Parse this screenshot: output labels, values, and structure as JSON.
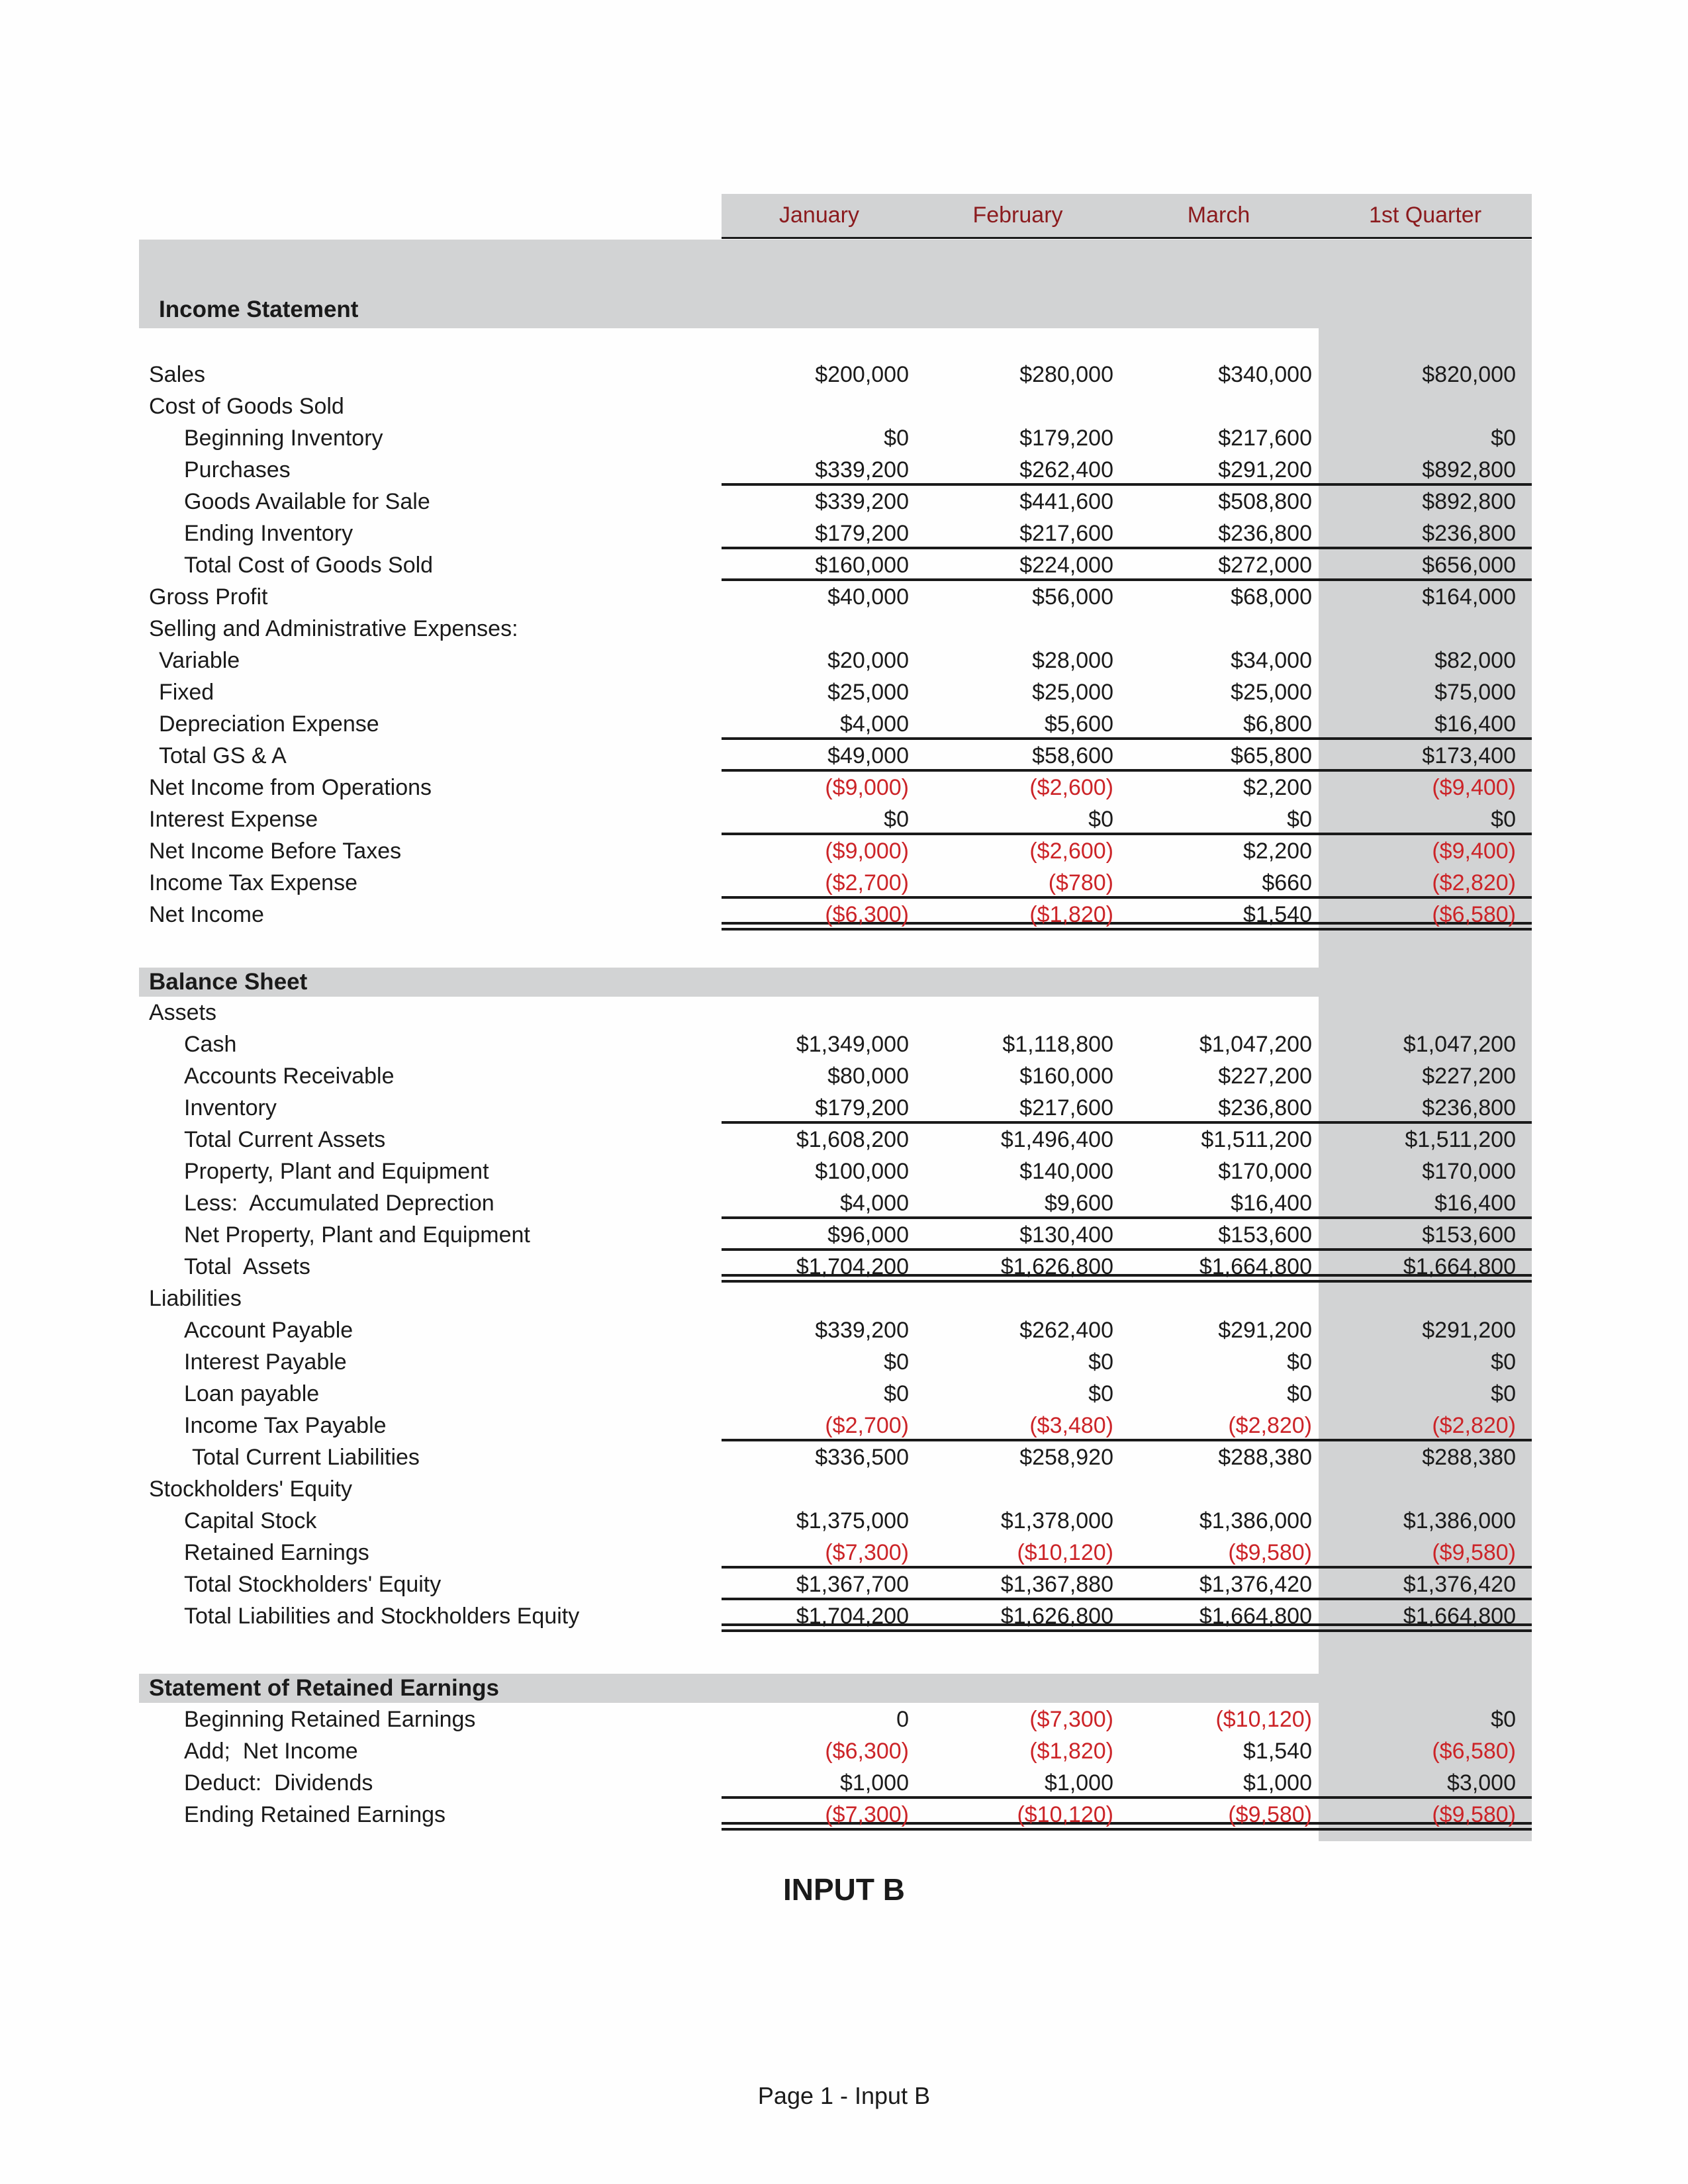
{
  "document": {
    "columns": [
      "January",
      "February",
      "March",
      "1st Quarter"
    ],
    "footer": {
      "title": "INPUT B",
      "page_label": "Page 1 - Input B"
    },
    "colors": {
      "month_header_text": "#8b1b1e",
      "negative_value_text": "#cc2428",
      "section_band_fill": "#d2d3d4",
      "quarter_column_fill": "#d2d3d4",
      "rule_line": "#1a1a1a",
      "body_text": "#1a1a1a"
    }
  },
  "sections": [
    {
      "id": "income",
      "title": "Income Statement",
      "rows": [
        {
          "label": "Sales",
          "indent": 0,
          "values": [
            "$200,000",
            "$280,000",
            "$340,000",
            "$820,000"
          ],
          "border": "none"
        },
        {
          "label": "Cost of Goods Sold",
          "indent": 0,
          "values": [
            "",
            "",
            "",
            ""
          ],
          "border": "none"
        },
        {
          "label": "Beginning Inventory",
          "indent": 2,
          "values": [
            "$0",
            "$179,200",
            "$217,600",
            "$0"
          ],
          "border": "none"
        },
        {
          "label": "Purchases",
          "indent": 2,
          "values": [
            "$339,200",
            "$262,400",
            "$291,200",
            "$892,800"
          ],
          "border": "single"
        },
        {
          "label": "Goods Available for Sale",
          "indent": 2,
          "values": [
            "$339,200",
            "$441,600",
            "$508,800",
            "$892,800"
          ],
          "border": "none"
        },
        {
          "label": "Ending Inventory",
          "indent": 2,
          "values": [
            "$179,200",
            "$217,600",
            "$236,800",
            "$236,800"
          ],
          "border": "single"
        },
        {
          "label": "Total Cost of Goods Sold",
          "indent": 2,
          "values": [
            "$160,000",
            "$224,000",
            "$272,000",
            "$656,000"
          ],
          "border": "single"
        },
        {
          "label": "Gross Profit",
          "indent": 0,
          "values": [
            "$40,000",
            "$56,000",
            "$68,000",
            "$164,000"
          ],
          "border": "none"
        },
        {
          "label": "Selling and Administrative Expenses:",
          "indent": 0,
          "values": [
            "",
            "",
            "",
            ""
          ],
          "border": "none"
        },
        {
          "label": "Variable",
          "indent": 1,
          "values": [
            "$20,000",
            "$28,000",
            "$34,000",
            "$82,000"
          ],
          "border": "none"
        },
        {
          "label": "Fixed",
          "indent": 1,
          "values": [
            "$25,000",
            "$25,000",
            "$25,000",
            "$75,000"
          ],
          "border": "none"
        },
        {
          "label": "Depreciation Expense",
          "indent": 1,
          "values": [
            "$4,000",
            "$5,600",
            "$6,800",
            "$16,400"
          ],
          "border": "single"
        },
        {
          "label": "Total GS & A",
          "indent": 1,
          "values": [
            "$49,000",
            "$58,600",
            "$65,800",
            "$173,400"
          ],
          "border": "single"
        },
        {
          "label": "Net Income from Operations",
          "indent": 0,
          "values": [
            "($9,000)",
            "($2,600)",
            "$2,200",
            "($9,400)"
          ],
          "border": "none"
        },
        {
          "label": "Interest Expense",
          "indent": 0,
          "values": [
            "$0",
            "$0",
            "$0",
            "$0"
          ],
          "border": "single"
        },
        {
          "label": "Net Income Before Taxes",
          "indent": 0,
          "values": [
            "($9,000)",
            "($2,600)",
            "$2,200",
            "($9,400)"
          ],
          "border": "none"
        },
        {
          "label": "Income Tax Expense",
          "indent": 0,
          "values": [
            "($2,700)",
            "($780)",
            "$660",
            "($2,820)"
          ],
          "border": "single"
        },
        {
          "label": "Net Income",
          "indent": 0,
          "values": [
            "($6,300)",
            "($1,820)",
            "$1,540",
            "($6,580)"
          ],
          "border": "double"
        }
      ]
    },
    {
      "id": "balance",
      "title": "Balance Sheet",
      "rows": [
        {
          "label": "Assets",
          "indent": 0,
          "values": [
            "",
            "",
            "",
            ""
          ],
          "border": "none"
        },
        {
          "label": "Cash",
          "indent": 2,
          "values": [
            "$1,349,000",
            "$1,118,800",
            "$1,047,200",
            "$1,047,200"
          ],
          "border": "none"
        },
        {
          "label": "Accounts Receivable",
          "indent": 2,
          "values": [
            "$80,000",
            "$160,000",
            "$227,200",
            "$227,200"
          ],
          "border": "none"
        },
        {
          "label": "Inventory",
          "indent": 2,
          "values": [
            "$179,200",
            "$217,600",
            "$236,800",
            "$236,800"
          ],
          "border": "single"
        },
        {
          "label": "Total Current Assets",
          "indent": 2,
          "values": [
            "$1,608,200",
            "$1,496,400",
            "$1,511,200",
            "$1,511,200"
          ],
          "border": "none"
        },
        {
          "label": "Property, Plant and Equipment",
          "indent": 2,
          "values": [
            "$100,000",
            "$140,000",
            "$170,000",
            "$170,000"
          ],
          "border": "none"
        },
        {
          "label": "Less:  Accumulated Deprection",
          "indent": 2,
          "values": [
            "$4,000",
            "$9,600",
            "$16,400",
            "$16,400"
          ],
          "border": "single"
        },
        {
          "label": "Net Property, Plant and Equipment",
          "indent": 2,
          "values": [
            "$96,000",
            "$130,400",
            "$153,600",
            "$153,600"
          ],
          "border": "single"
        },
        {
          "label": "Total  Assets",
          "indent": 2,
          "values": [
            "$1,704,200",
            "$1,626,800",
            "$1,664,800",
            "$1,664,800"
          ],
          "border": "double"
        },
        {
          "label": "Liabilities",
          "indent": 0,
          "values": [
            "",
            "",
            "",
            ""
          ],
          "border": "none"
        },
        {
          "label": "Account Payable",
          "indent": 2,
          "values": [
            "$339,200",
            "$262,400",
            "$291,200",
            "$291,200"
          ],
          "border": "none"
        },
        {
          "label": "Interest Payable",
          "indent": 2,
          "values": [
            "$0",
            "$0",
            "$0",
            "$0"
          ],
          "border": "none"
        },
        {
          "label": "Loan payable",
          "indent": 2,
          "values": [
            "$0",
            "$0",
            "$0",
            "$0"
          ],
          "border": "none"
        },
        {
          "label": "Income Tax Payable",
          "indent": 2,
          "values": [
            "($2,700)",
            "($3,480)",
            "($2,820)",
            "($2,820)"
          ],
          "border": "single"
        },
        {
          "label": "Total Current Liabilities",
          "indent": 3,
          "values": [
            "$336,500",
            "$258,920",
            "$288,380",
            "$288,380"
          ],
          "border": "none"
        },
        {
          "label": "Stockholders' Equity",
          "indent": 0,
          "values": [
            "",
            "",
            "",
            ""
          ],
          "border": "none"
        },
        {
          "label": "Capital Stock",
          "indent": 2,
          "values": [
            "$1,375,000",
            "$1,378,000",
            "$1,386,000",
            "$1,386,000"
          ],
          "border": "none"
        },
        {
          "label": "Retained Earnings",
          "indent": 2,
          "values": [
            "($7,300)",
            "($10,120)",
            "($9,580)",
            "($9,580)"
          ],
          "border": "single"
        },
        {
          "label": "Total Stockholders' Equity",
          "indent": 2,
          "values": [
            "$1,367,700",
            "$1,367,880",
            "$1,376,420",
            "$1,376,420"
          ],
          "border": "single"
        },
        {
          "label": "Total Liabilities and Stockholders Equity",
          "indent": 2,
          "values": [
            "$1,704,200",
            "$1,626,800",
            "$1,664,800",
            "$1,664,800"
          ],
          "border": "double"
        }
      ]
    },
    {
      "id": "retained",
      "title": "Statement of Retained Earnings",
      "rows": [
        {
          "label": "Beginning Retained Earnings",
          "indent": 2,
          "values": [
            "0",
            "($7,300)",
            "($10,120)",
            "$0"
          ],
          "border": "none"
        },
        {
          "label": "Add;  Net Income",
          "indent": 2,
          "values": [
            "($6,300)",
            "($1,820)",
            "$1,540",
            "($6,580)"
          ],
          "border": "none"
        },
        {
          "label": "Deduct:  Dividends",
          "indent": 2,
          "values": [
            "$1,000",
            "$1,000",
            "$1,000",
            "$3,000"
          ],
          "border": "single"
        },
        {
          "label": "Ending Retained Earnings",
          "indent": 2,
          "values": [
            "($7,300)",
            "($10,120)",
            "($9,580)",
            "($9,580)"
          ],
          "border": "double"
        }
      ]
    }
  ]
}
